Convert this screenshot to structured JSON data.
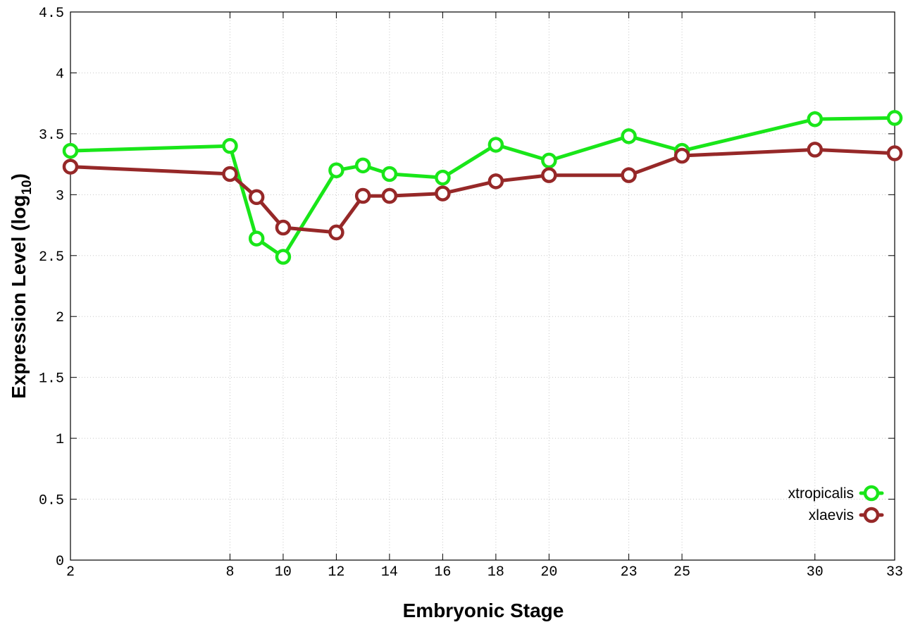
{
  "chart_data": {
    "type": "line",
    "title": "",
    "xlabel": "Embryonic Stage",
    "ylabel_main": "Expression Level (log",
    "ylabel_sub": "10",
    "ylabel_end": ")",
    "x": [
      2,
      8,
      9,
      10,
      12,
      13,
      14,
      16,
      18,
      20,
      23,
      25,
      30,
      33
    ],
    "xlim": [
      2,
      33
    ],
    "ylim": [
      0,
      4.5
    ],
    "x_ticks": [
      2,
      8,
      10,
      12,
      14,
      16,
      18,
      20,
      23,
      25,
      30,
      33
    ],
    "x_tick_labels": [
      "2",
      "8",
      "10",
      "12",
      "14",
      "16",
      "18",
      "20",
      "23",
      "25",
      "30",
      "33"
    ],
    "y_ticks": [
      0,
      0.5,
      1,
      1.5,
      2,
      2.5,
      3,
      3.5,
      4,
      4.5
    ],
    "y_tick_labels": [
      "0",
      "0.5",
      "1",
      "1.5",
      "2",
      "2.5",
      "3",
      "3.5",
      "4",
      "4.5"
    ],
    "grid": true,
    "legend_position": "bottom-right",
    "series": [
      {
        "name": "xtropicalis",
        "color": "#19e619",
        "values": [
          3.36,
          3.4,
          2.64,
          2.49,
          3.2,
          3.24,
          3.17,
          3.14,
          3.41,
          3.28,
          3.48,
          3.36,
          3.62,
          3.63
        ]
      },
      {
        "name": "xlaevis",
        "color": "#962828",
        "values": [
          3.23,
          3.17,
          2.98,
          2.73,
          2.69,
          2.99,
          2.99,
          3.01,
          3.11,
          3.16,
          3.16,
          3.32,
          3.37,
          3.34
        ]
      }
    ]
  }
}
